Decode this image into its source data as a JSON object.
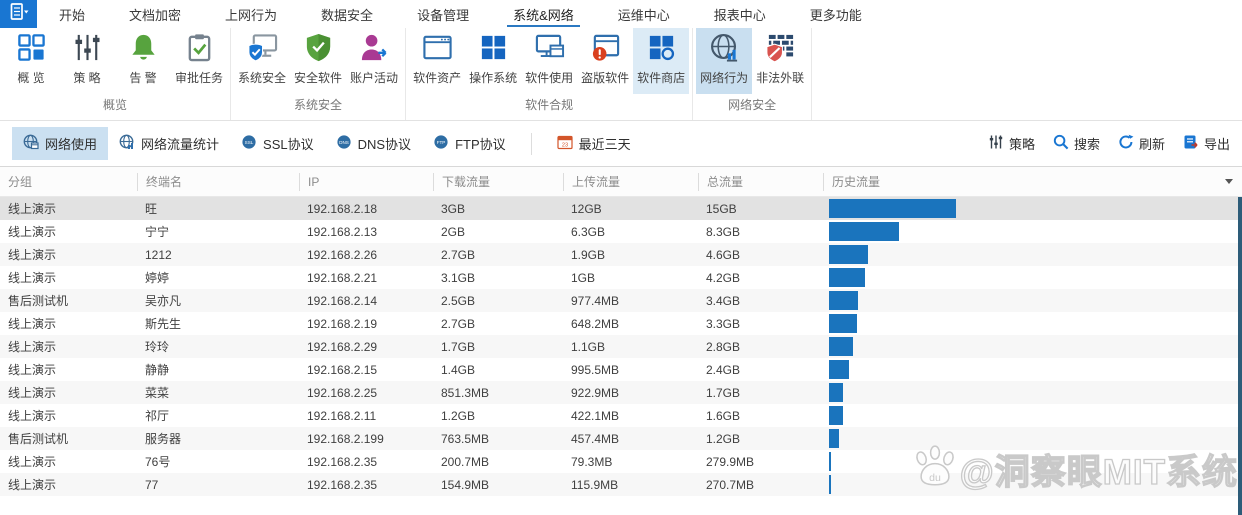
{
  "menu": {
    "app_button": {
      "icon": "app-menu-icon"
    },
    "tabs": [
      "开始",
      "文档加密",
      "上网行为",
      "数据安全",
      "设备管理",
      "系统&网络",
      "运维中心",
      "报表中心",
      "更多功能"
    ],
    "selected_tab": "系统&网络"
  },
  "ribbon": {
    "groups": [
      {
        "label": "概览",
        "items": [
          {
            "label": "概 览",
            "icon": "overview-grid-icon"
          },
          {
            "label": "策 略",
            "icon": "policy-sliders-icon"
          },
          {
            "label": "告 警",
            "icon": "alarm-bell-icon"
          },
          {
            "label": "审批任务",
            "icon": "approval-clipboard-icon"
          }
        ]
      },
      {
        "label": "系统安全",
        "items": [
          {
            "label": "系统安全",
            "icon": "system-security-icon"
          },
          {
            "label": "安全软件",
            "icon": "security-software-shield-icon"
          },
          {
            "label": "账户活动",
            "icon": "account-activity-icon"
          }
        ]
      },
      {
        "label": "软件合规",
        "items": [
          {
            "label": "软件资产",
            "icon": "software-asset-window-icon"
          },
          {
            "label": "操作系统",
            "icon": "os-squares-icon"
          },
          {
            "label": "软件使用",
            "icon": "software-usage-monitor-icon"
          },
          {
            "label": "盗版软件",
            "icon": "pirated-software-warning-icon"
          },
          {
            "label": "软件商店",
            "icon": "software-store-icon",
            "highlighted": true
          }
        ]
      },
      {
        "label": "网络安全",
        "items": [
          {
            "label": "网络行为",
            "icon": "network-behavior-globe-icon",
            "selected": true
          },
          {
            "label": "非法外联",
            "icon": "illegal-connection-shield-icon"
          }
        ]
      }
    ]
  },
  "toolbar": {
    "tabs": [
      {
        "label": "网络使用",
        "icon": "globe-usage-icon",
        "selected": true
      },
      {
        "label": "网络流量统计",
        "icon": "globe-stats-icon"
      },
      {
        "label": "SSL协议",
        "icon": "globe-ssl-icon"
      },
      {
        "label": "DNS协议",
        "icon": "globe-dns-icon"
      },
      {
        "label": "FTP协议",
        "icon": "globe-ftp-icon"
      }
    ],
    "date_filter": {
      "label": "最近三天",
      "icon": "calendar-icon"
    },
    "actions": [
      {
        "label": "策略",
        "icon": "sliders-icon"
      },
      {
        "label": "搜索",
        "icon": "search-icon"
      },
      {
        "label": "刷新",
        "icon": "refresh-icon"
      },
      {
        "label": "导出",
        "icon": "export-icon"
      }
    ]
  },
  "table": {
    "columns": [
      "分组",
      "终端名",
      "IP",
      "下载流量",
      "上传流量",
      "总流量",
      "历史流量"
    ],
    "rows": [
      {
        "group": "线上演示",
        "name": "旺",
        "ip": "192.168.2.18",
        "download": "3GB",
        "upload": "12GB",
        "total": "15GB",
        "history_gb": 15
      },
      {
        "group": "线上演示",
        "name": "宁宁",
        "ip": "192.168.2.13",
        "download": "2GB",
        "upload": "6.3GB",
        "total": "8.3GB",
        "history_gb": 8.3
      },
      {
        "group": "线上演示",
        "name": "1212",
        "ip": "192.168.2.26",
        "download": "2.7GB",
        "upload": "1.9GB",
        "total": "4.6GB",
        "history_gb": 4.6
      },
      {
        "group": "线上演示",
        "name": "婷婷",
        "ip": "192.168.2.21",
        "download": "3.1GB",
        "upload": "1GB",
        "total": "4.2GB",
        "history_gb": 4.2
      },
      {
        "group": "售后测试机",
        "name": "吴亦凡",
        "ip": "192.168.2.14",
        "download": "2.5GB",
        "upload": "977.4MB",
        "total": "3.4GB",
        "history_gb": 3.4
      },
      {
        "group": "线上演示",
        "name": "斯先生",
        "ip": "192.168.2.19",
        "download": "2.7GB",
        "upload": "648.2MB",
        "total": "3.3GB",
        "history_gb": 3.3
      },
      {
        "group": "线上演示",
        "name": "玲玲",
        "ip": "192.168.2.29",
        "download": "1.7GB",
        "upload": "1.1GB",
        "total": "2.8GB",
        "history_gb": 2.8
      },
      {
        "group": "线上演示",
        "name": "静静",
        "ip": "192.168.2.15",
        "download": "1.4GB",
        "upload": "995.5MB",
        "total": "2.4GB",
        "history_gb": 2.4
      },
      {
        "group": "线上演示",
        "name": "菜菜",
        "ip": "192.168.2.25",
        "download": "851.3MB",
        "upload": "922.9MB",
        "total": "1.7GB",
        "history_gb": 1.7
      },
      {
        "group": "线上演示",
        "name": "祁厅",
        "ip": "192.168.2.11",
        "download": "1.2GB",
        "upload": "422.1MB",
        "total": "1.6GB",
        "history_gb": 1.6
      },
      {
        "group": "售后测试机",
        "name": "服务器",
        "ip": "192.168.2.199",
        "download": "763.5MB",
        "upload": "457.4MB",
        "total": "1.2GB",
        "history_gb": 1.2
      },
      {
        "group": "线上演示",
        "name": "76号",
        "ip": "192.168.2.35",
        "download": "200.7MB",
        "upload": "79.3MB",
        "total": "279.9MB",
        "history_gb": 0.27
      },
      {
        "group": "线上演示",
        "name": "77",
        "ip": "192.168.2.35",
        "download": "154.9MB",
        "upload": "115.9MB",
        "total": "270.7MB",
        "history_gb": 0.26
      }
    ]
  },
  "chart_data": {
    "type": "bar",
    "title": "历史流量",
    "categories": [
      "旺",
      "宁宁",
      "1212",
      "婷婷",
      "吴亦凡",
      "斯先生",
      "玲玲",
      "静静",
      "菜菜",
      "祁厅",
      "服务器",
      "76号",
      "77"
    ],
    "values": [
      15,
      8.3,
      4.6,
      4.2,
      3.4,
      3.3,
      2.8,
      2.4,
      1.7,
      1.6,
      1.2,
      0.27,
      0.26
    ],
    "unit": "GB",
    "orientation": "horizontal",
    "bar_color": "#1a74bd"
  },
  "watermark": {
    "icon": "baidu-paw-icon",
    "icon_text": "du",
    "text": "@洞察眼MIT系统"
  },
  "colors": {
    "accent": "#1976d2",
    "bar": "#1a74bd",
    "selected_row": "#e2e2e2",
    "tab_highlight": "#cbe0f1",
    "ribbon_highlight": "#dcebf6",
    "scrollbar": "#2d5c79",
    "alarm_green": "#57a33e",
    "warning_red": "#d9401f",
    "account_purple": "#a93a93"
  }
}
